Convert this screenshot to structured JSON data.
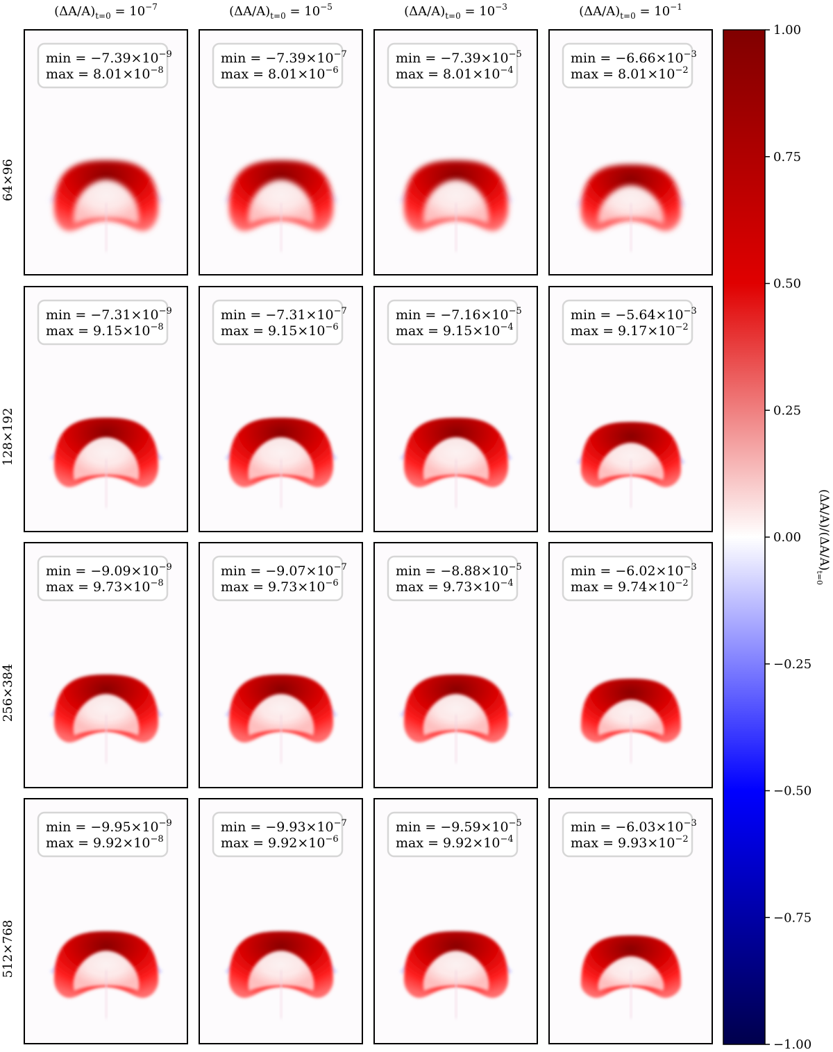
{
  "chart_data": {
    "type": "heatmap",
    "colormap": "seismic",
    "colorbar": {
      "label": "(ΔA/A)/(ΔA/A)t=0",
      "range": [
        -1.0,
        1.0
      ],
      "ticks": [
        "1.00",
        "0.75",
        "0.50",
        "0.25",
        "0.00",
        "−0.25",
        "−0.50",
        "−0.75",
        "−1.00"
      ]
    },
    "column_titles": [
      {
        "prefix": "(ΔA/A)",
        "sub": "t=0",
        "base": " = 10",
        "exp": "−7"
      },
      {
        "prefix": "(ΔA/A)",
        "sub": "t=0",
        "base": " = 10",
        "exp": "−5"
      },
      {
        "prefix": "(ΔA/A)",
        "sub": "t=0",
        "base": " = 10",
        "exp": "−3"
      },
      {
        "prefix": "(ΔA/A)",
        "sub": "t=0",
        "base": " = 10",
        "exp": "−1"
      }
    ],
    "row_labels": [
      "64×96",
      "128×192",
      "256×384",
      "512×768"
    ],
    "panels": [
      [
        {
          "min": {
            "mant": "−7.39",
            "exp": "−9"
          },
          "max": {
            "mant": "8.01",
            "exp": "−8"
          }
        },
        {
          "min": {
            "mant": "−7.39",
            "exp": "−7"
          },
          "max": {
            "mant": "8.01",
            "exp": "−6"
          }
        },
        {
          "min": {
            "mant": "−7.39",
            "exp": "−5"
          },
          "max": {
            "mant": "8.01",
            "exp": "−4"
          }
        },
        {
          "min": {
            "mant": "−6.66",
            "exp": "−3"
          },
          "max": {
            "mant": "8.01",
            "exp": "−2"
          }
        }
      ],
      [
        {
          "min": {
            "mant": "−7.31",
            "exp": "−9"
          },
          "max": {
            "mant": "9.15",
            "exp": "−8"
          }
        },
        {
          "min": {
            "mant": "−7.31",
            "exp": "−7"
          },
          "max": {
            "mant": "9.15",
            "exp": "−6"
          }
        },
        {
          "min": {
            "mant": "−7.16",
            "exp": "−5"
          },
          "max": {
            "mant": "9.15",
            "exp": "−4"
          }
        },
        {
          "min": {
            "mant": "−5.64",
            "exp": "−3"
          },
          "max": {
            "mant": "9.17",
            "exp": "−2"
          }
        }
      ],
      [
        {
          "min": {
            "mant": "−9.09",
            "exp": "−9"
          },
          "max": {
            "mant": "9.73",
            "exp": "−8"
          }
        },
        {
          "min": {
            "mant": "−9.07",
            "exp": "−7"
          },
          "max": {
            "mant": "9.73",
            "exp": "−6"
          }
        },
        {
          "min": {
            "mant": "−8.88",
            "exp": "−5"
          },
          "max": {
            "mant": "9.73",
            "exp": "−4"
          }
        },
        {
          "min": {
            "mant": "−6.02",
            "exp": "−3"
          },
          "max": {
            "mant": "9.74",
            "exp": "−2"
          }
        }
      ],
      [
        {
          "min": {
            "mant": "−9.95",
            "exp": "−9"
          },
          "max": {
            "mant": "9.92",
            "exp": "−8"
          }
        },
        {
          "min": {
            "mant": "−9.93",
            "exp": "−7"
          },
          "max": {
            "mant": "9.92",
            "exp": "−6"
          }
        },
        {
          "min": {
            "mant": "−9.59",
            "exp": "−5"
          },
          "max": {
            "mant": "9.92",
            "exp": "−4"
          }
        },
        {
          "min": {
            "mant": "−6.03",
            "exp": "−3"
          },
          "max": {
            "mant": "9.93",
            "exp": "−2"
          }
        }
      ]
    ]
  }
}
